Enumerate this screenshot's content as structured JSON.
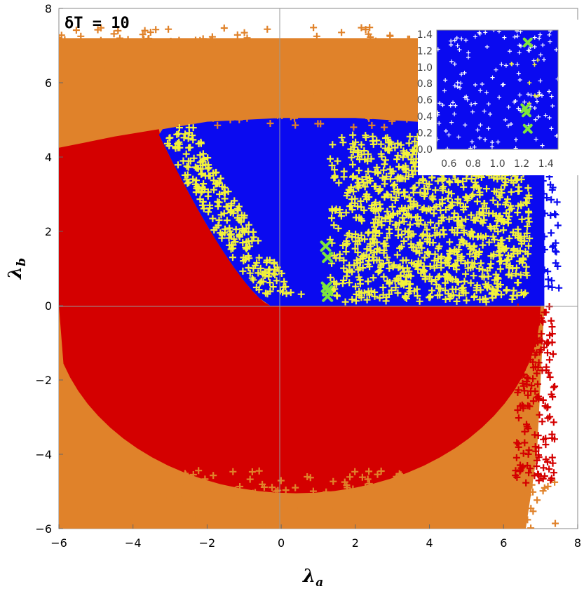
{
  "chart_data": {
    "type": "scatter",
    "annotation": "δT = 10",
    "xlabel_main": "λ",
    "xlabel_sub": "a",
    "ylabel_main": "λ",
    "ylabel_sub": "b",
    "xlim": [
      -6,
      8
    ],
    "ylim": [
      -6,
      8
    ],
    "xticks": [
      "−6",
      "−4",
      "−2",
      "0",
      "2",
      "4",
      "6",
      "8"
    ],
    "yticks": [
      "−6",
      "−4",
      "−2",
      "0",
      "2",
      "4",
      "6",
      "8"
    ],
    "colors": {
      "orange": "#e0822a",
      "red": "#d40000",
      "blue": "#0a0af0",
      "yellow": "#f2f23a",
      "green": "#7ee63c"
    },
    "regions": [
      {
        "color": "orange",
        "description_region": "lambda_b between -6 and 7.5, outside the inner ellipse"
      },
      {
        "color": "red",
        "description_region": "lambda_b < 0 and left part with lambda_b > 0 (x < boundary)"
      },
      {
        "color": "blue",
        "description_region": "lambda_b in (0,5), right of the curved boundary"
      },
      {
        "color": "yellow",
        "description_region": "scattered over blue region edges, x from -3 to 7"
      }
    ],
    "highlighted_points": [
      {
        "x": 1.25,
        "y": 1.3
      },
      {
        "x": 1.22,
        "y": 0.5
      },
      {
        "x": 1.25,
        "y": 0.4
      },
      {
        "x": 1.25,
        "y": 0.25
      },
      {
        "x": 1.2,
        "y": 1.6
      }
    ],
    "inset": {
      "xlim": [
        0.5,
        1.5
      ],
      "ylim": [
        0.0,
        1.45
      ],
      "xticks": [
        "0.6",
        "0.8",
        "1.0",
        "1.2",
        "1.4"
      ],
      "yticks": [
        "0.0",
        "0.2",
        "0.4",
        "0.6",
        "0.8",
        "1.0",
        "1.2",
        "1.4"
      ],
      "highlighted_points": [
        {
          "x": 1.25,
          "y": 1.3
        },
        {
          "x": 1.23,
          "y": 0.5
        },
        {
          "x": 1.24,
          "y": 0.45
        },
        {
          "x": 1.25,
          "y": 0.25
        }
      ]
    }
  }
}
